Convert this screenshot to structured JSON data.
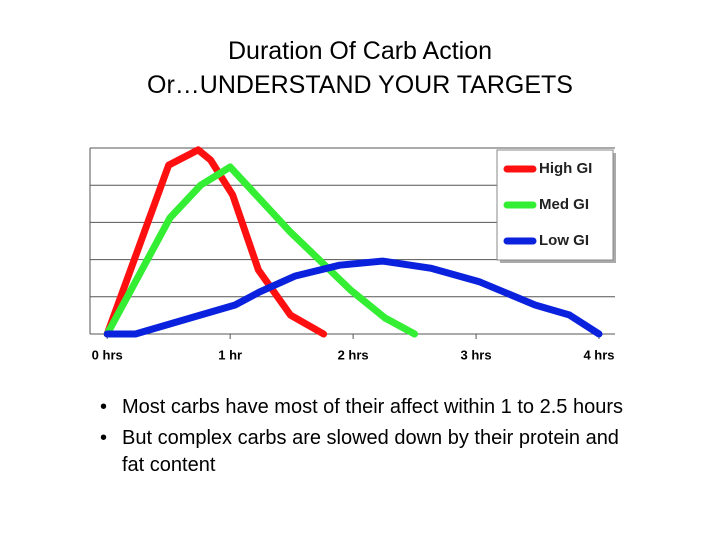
{
  "title": [
    "Duration Of Carb Action",
    "Or…UNDERSTAND YOUR TARGETS"
  ],
  "chart_data": {
    "type": "line",
    "xlim": [
      -0.14,
      4.13
    ],
    "xticks": [
      {
        "value": 0,
        "label": "0 hrs"
      },
      {
        "value": 1,
        "label": "1 hr"
      },
      {
        "value": 2,
        "label": "2 hrs"
      },
      {
        "value": 3,
        "label": "3 hrs"
      },
      {
        "value": 4,
        "label": "4 hrs"
      }
    ],
    "ylim": [
      0,
      5
    ],
    "yticks": [
      0,
      1,
      2,
      3,
      4,
      5
    ],
    "grid": true,
    "legend": "top-right",
    "series": [
      {
        "name": "High GI",
        "color": "#ff1010",
        "x": [
          0,
          0.5,
          0.74,
          0.84,
          1.02,
          1.23,
          1.49,
          1.76
        ],
        "values": [
          0,
          4.54,
          4.95,
          4.68,
          3.74,
          1.72,
          0.51,
          0
        ]
      },
      {
        "name": "Med GI",
        "color": "#33ee33",
        "x": [
          0,
          0.51,
          0.76,
          1.0,
          1.49,
          1.98,
          2.26,
          2.5
        ],
        "values": [
          0,
          3.12,
          4.0,
          4.49,
          2.74,
          1.18,
          0.43,
          0
        ]
      },
      {
        "name": "Low GI",
        "color": "#0a22dd",
        "x": [
          0,
          0.23,
          0.76,
          1.04,
          1.24,
          1.53,
          1.89,
          2.24,
          2.63,
          3.03,
          3.48,
          3.76,
          4.0
        ],
        "values": [
          0,
          0,
          0.51,
          0.78,
          1.13,
          1.56,
          1.85,
          1.96,
          1.77,
          1.4,
          0.78,
          0.51,
          0
        ]
      }
    ]
  },
  "bullets": [
    "Most carbs have most of their affect within 1 to 2.5 hours",
    "But complex carbs are slowed down by their protein and fat content"
  ]
}
